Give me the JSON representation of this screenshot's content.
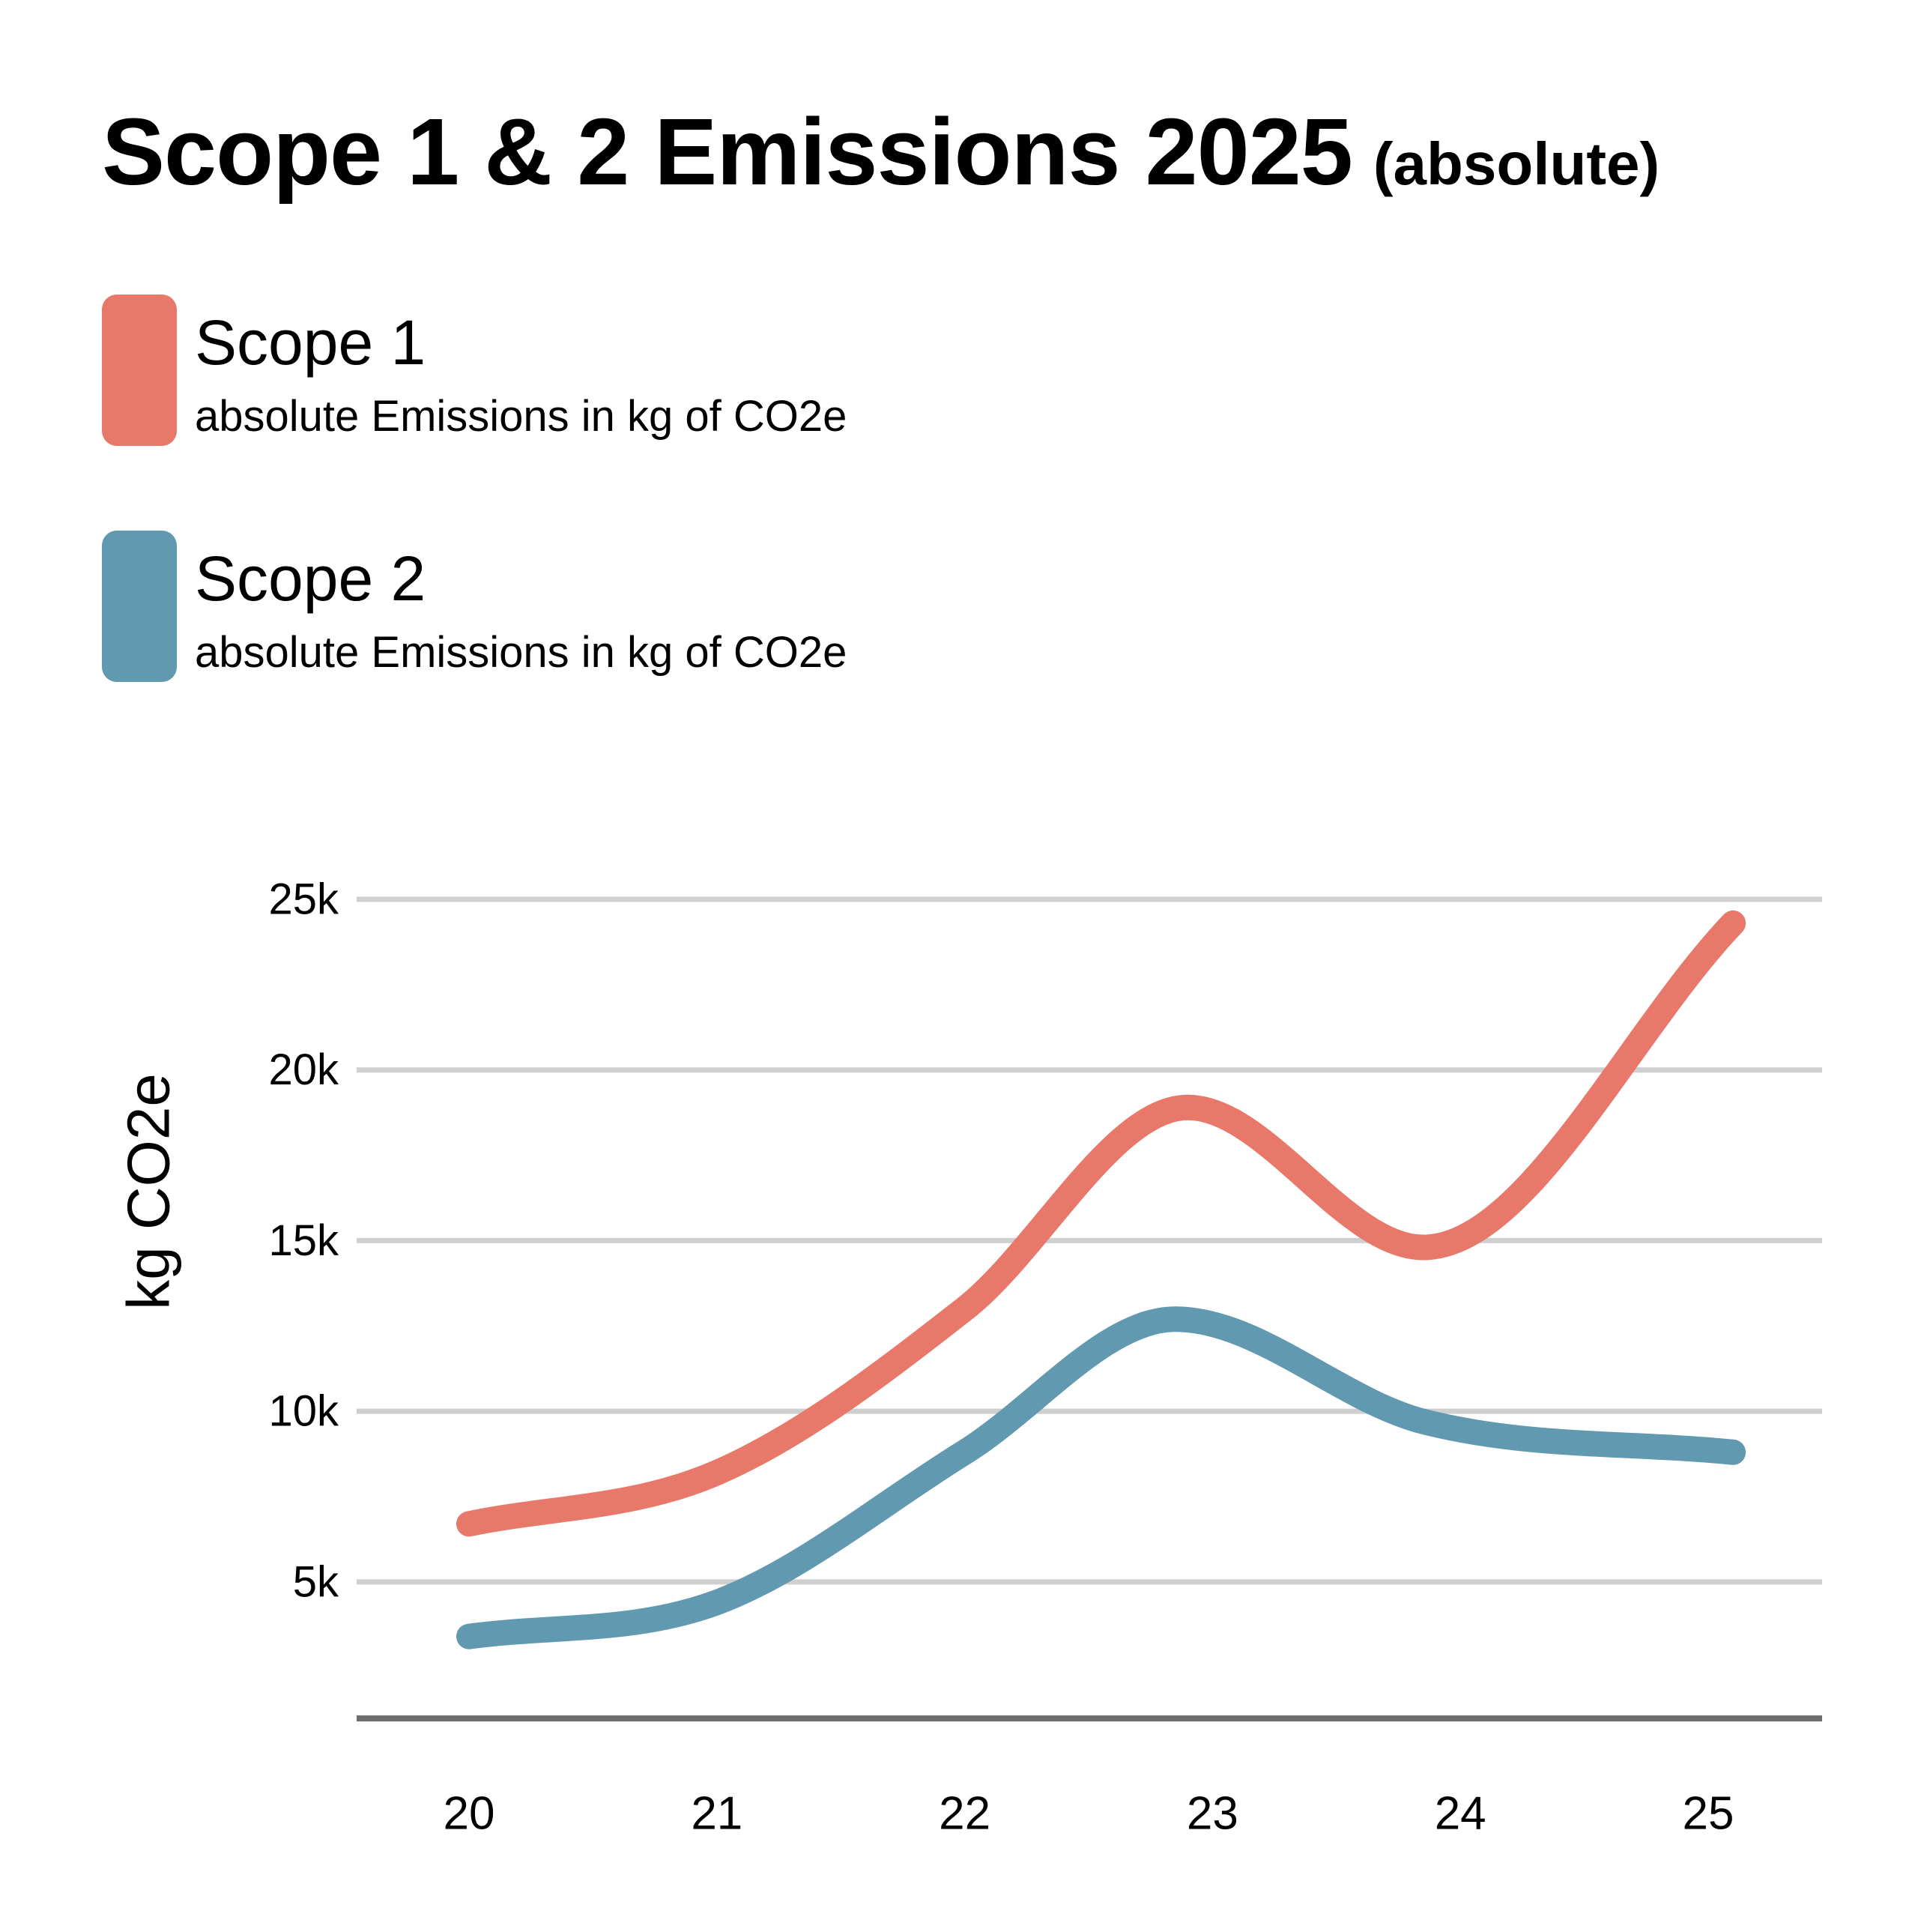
{
  "title": {
    "main": "Scope 1 & 2  Emissions 2025",
    "qualifier": "(absolute)"
  },
  "legend": [
    {
      "name": "Scope 1",
      "description": "absolute Emissions in kg of CO2e",
      "color": "#E8786A"
    },
    {
      "name": "Scope 2",
      "description": "absolute Emissions in kg of CO2e",
      "color": "#6199B0"
    }
  ],
  "colors": {
    "gridline": "#CFCFCF",
    "baseline": "#6E6E6E",
    "text": "#000000"
  },
  "chart_data": {
    "type": "line",
    "title": "Scope 1 & 2  Emissions 2025 (absolute)",
    "xlabel": "",
    "ylabel": "kg CO2e",
    "categories": [
      "20",
      "21",
      "22",
      "23",
      "24",
      "25"
    ],
    "y_ticks": [
      5000,
      10000,
      15000,
      20000,
      25000
    ],
    "y_tick_labels": [
      "5k",
      "10k",
      "15k",
      "20k",
      "25k"
    ],
    "ylim": [
      1000,
      25000
    ],
    "grid": true,
    "legend_position": "top-left",
    "smooth": true,
    "series": [
      {
        "name": "Scope 1",
        "color": "#E8786A",
        "x": [
          20,
          21,
          22,
          22.9,
          23.85,
          25.1
        ],
        "values": [
          6700,
          8200,
          13000,
          18900,
          14800,
          24300
        ]
      },
      {
        "name": "Scope 2",
        "color": "#6199B0",
        "x": [
          20,
          21,
          22,
          22.85,
          23.85,
          25.1
        ],
        "values": [
          3400,
          4400,
          8800,
          12700,
          9700,
          8800
        ]
      }
    ]
  }
}
